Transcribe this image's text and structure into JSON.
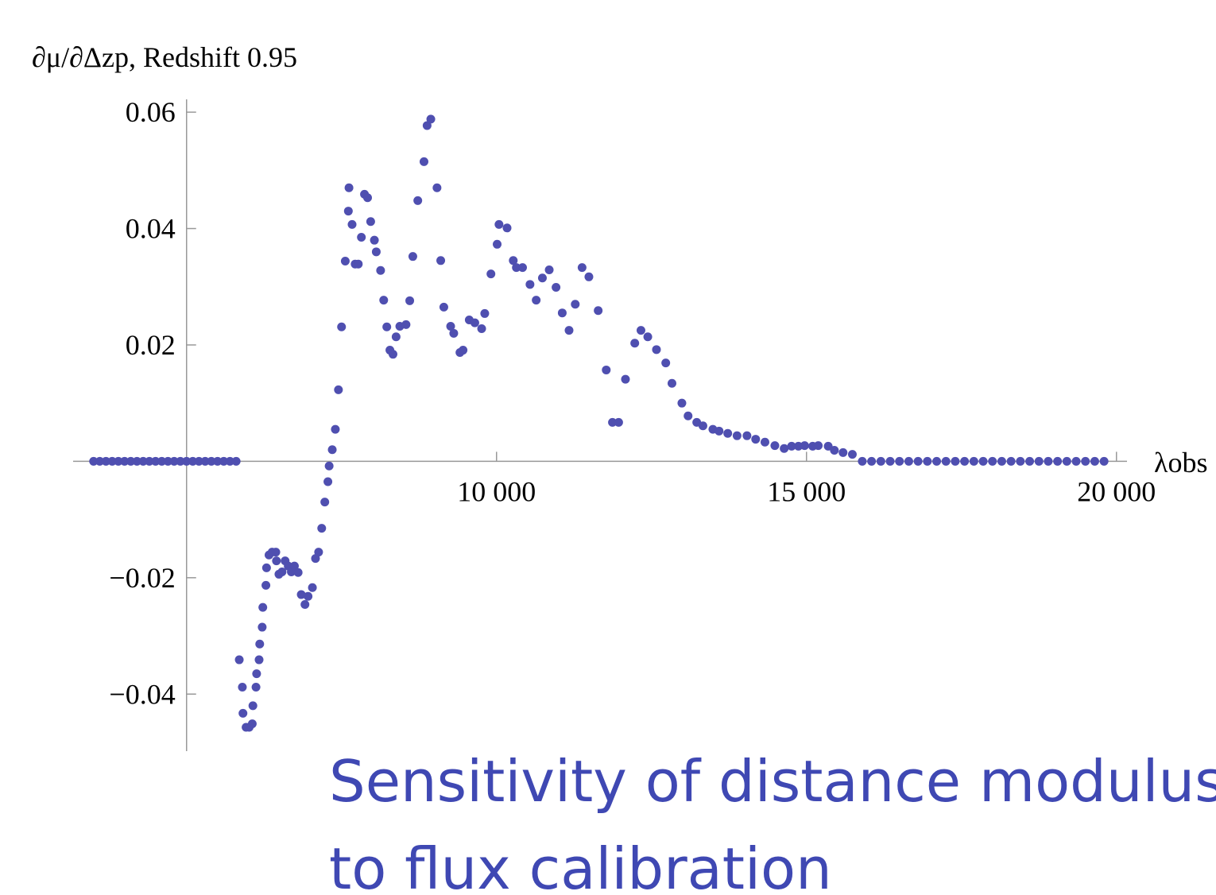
{
  "chart_data": {
    "type": "scatter",
    "y_label": "∂μ/∂Δzp, Redshift 0.95",
    "x_label": "λobs",
    "title": [
      "Sensitivity of distance modulus",
      "to flux calibration"
    ],
    "color": "#4f4fb0",
    "title_color": "#3f48b3",
    "origin": [
      5000,
      0
    ],
    "xlim": [
      3170,
      20170
    ],
    "ylim": [
      -0.0498,
      0.0622
    ],
    "xticks": [
      {
        "value": 10000,
        "label": "10 000"
      },
      {
        "value": 15000,
        "label": "15 000"
      },
      {
        "value": 20000,
        "label": "20 000"
      }
    ],
    "yticks": [
      {
        "value": -0.04,
        "label": "−0.04"
      },
      {
        "value": -0.02,
        "label": "−0.02"
      },
      0.02,
      0.04,
      0.06
    ],
    "x": [
      3500,
      3600,
      3700,
      3800,
      3900,
      4000,
      4100,
      4200,
      4300,
      4400,
      4500,
      4600,
      4700,
      4800,
      4900,
      5000,
      5100,
      5200,
      5300,
      5400,
      5500,
      5600,
      5700,
      5800,
      5850,
      5900,
      5910,
      5960,
      6010,
      6060,
      6070,
      6120,
      6130,
      6170,
      6180,
      6220,
      6230,
      6280,
      6290,
      6330,
      6380,
      6440,
      6450,
      6490,
      6540,
      6590,
      6640,
      6690,
      6740,
      6800,
      6850,
      6910,
      6960,
      7030,
      7080,
      7130,
      7180,
      7230,
      7280,
      7300,
      7350,
      7400,
      7450,
      7500,
      7560,
      7620,
      7610,
      7670,
      7720,
      7770,
      7820,
      7870,
      7920,
      7970,
      8030,
      8060,
      8130,
      8180,
      8230,
      8280,
      8330,
      8380,
      8440,
      8540,
      8600,
      8650,
      8730,
      8830,
      8880,
      8940,
      9040,
      9100,
      9150,
      9260,
      9310,
      9410,
      9460,
      9560,
      9650,
      9760,
      9810,
      9910,
      10010,
      10040,
      10170,
      10270,
      10320,
      10420,
      10540,
      10640,
      10740,
      10850,
      10960,
      11060,
      11170,
      11270,
      11380,
      11490,
      11640,
      11770,
      11870,
      11970,
      12080,
      12230,
      12330,
      12440,
      12580,
      12730,
      12830,
      12990,
      13090,
      13230,
      13330,
      13490,
      13590,
      13730,
      13880,
      14040,
      14180,
      14330,
      14490,
      14640,
      14760,
      14870,
      14970,
      15100,
      15190,
      15350,
      15450,
      15590,
      15740,
      15900,
      16050,
      16200,
      16350,
      16500,
      16650,
      16800,
      16950,
      17100,
      17250,
      17400,
      17550,
      17700,
      17850,
      18000,
      18150,
      18300,
      18450,
      18600,
      18750,
      18900,
      19050,
      19200,
      19350,
      19500,
      19650,
      19800
    ],
    "values": [
      0,
      0,
      0,
      0,
      0,
      0,
      0,
      0,
      0,
      0,
      0,
      0,
      0,
      0,
      0,
      0,
      0,
      0,
      0,
      0,
      0,
      0,
      0,
      0,
      -0.0341,
      -0.0388,
      -0.0433,
      -0.0457,
      -0.0457,
      -0.0451,
      -0.042,
      -0.0388,
      -0.0365,
      -0.0341,
      -0.0314,
      -0.0285,
      -0.0251,
      -0.0213,
      -0.0183,
      -0.0161,
      -0.0156,
      -0.0156,
      -0.0171,
      -0.0194,
      -0.019,
      -0.0171,
      -0.018,
      -0.019,
      -0.018,
      -0.0191,
      -0.0229,
      -0.0246,
      -0.0232,
      -0.0217,
      -0.0167,
      -0.0156,
      -0.0115,
      -0.007,
      -0.0035,
      -0.0008,
      0.002,
      0.0055,
      0.0123,
      0.0231,
      0.0344,
      0.047,
      0.043,
      0.0407,
      0.0339,
      0.0339,
      0.0385,
      0.0459,
      0.0453,
      0.0412,
      0.038,
      0.036,
      0.0328,
      0.0277,
      0.0231,
      0.0191,
      0.0184,
      0.0214,
      0.0232,
      0.0235,
      0.0276,
      0.0352,
      0.0448,
      0.0515,
      0.0577,
      0.0588,
      0.047,
      0.0345,
      0.0265,
      0.0232,
      0.022,
      0.0187,
      0.0191,
      0.0243,
      0.0238,
      0.0228,
      0.0254,
      0.0322,
      0.0373,
      0.0407,
      0.0401,
      0.0345,
      0.0333,
      0.0333,
      0.0304,
      0.0277,
      0.0315,
      0.0329,
      0.0299,
      0.0255,
      0.0225,
      0.027,
      0.0333,
      0.0317,
      0.0259,
      0.0157,
      0.0067,
      0.0067,
      0.0141,
      0.0203,
      0.0225,
      0.0214,
      0.0192,
      0.0169,
      0.0134,
      0.01,
      0.0078,
      0.0067,
      0.0061,
      0.0055,
      0.0052,
      0.0048,
      0.0044,
      0.0044,
      0.0038,
      0.0033,
      0.0027,
      0.0022,
      0.0026,
      0.0026,
      0.0027,
      0.0026,
      0.0027,
      0.0026,
      0.0019,
      0.0015,
      0.0012,
      0,
      0,
      0,
      0,
      0,
      0,
      0,
      0,
      0,
      0,
      0,
      0,
      0,
      0,
      0,
      0,
      0,
      0,
      0,
      0,
      0,
      0,
      0,
      0,
      0,
      0,
      0
    ]
  }
}
